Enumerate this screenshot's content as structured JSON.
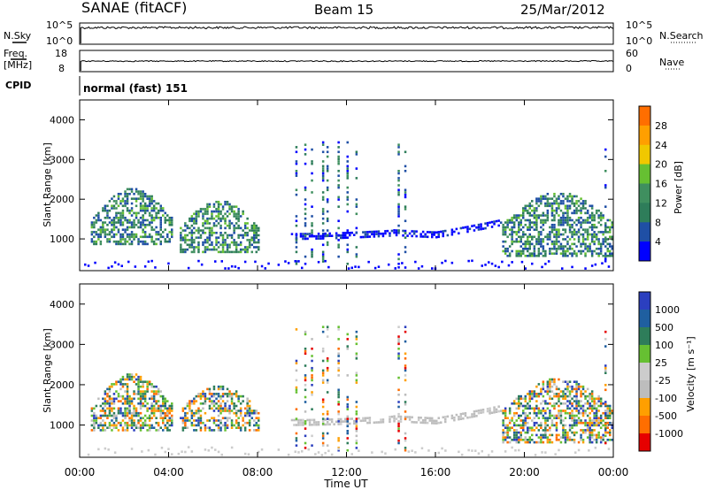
{
  "header": {
    "station": "SANAE (fitACF)",
    "beam": "Beam 15",
    "date": "25/Mar/2012"
  },
  "noise_panel": {
    "left_label": "N.Sky",
    "right_label": "N.Search",
    "left_ticks": [
      "10^5",
      "10^0"
    ],
    "right_ticks": [
      "10^5",
      "10^0"
    ]
  },
  "freq_panel": {
    "left_label": "Freq.",
    "left_unit": "[MHz]",
    "right_label": "Nave",
    "left_ticks": [
      "18",
      "8"
    ],
    "right_ticks": [
      "60",
      "0"
    ]
  },
  "cpid": {
    "label": "CPID",
    "text": "normal (fast) 151"
  },
  "colors": {
    "power": [
      "#0000ff",
      "#1f4fa5",
      "#2e7d5a",
      "#3f8f5f",
      "#66c032",
      "#f0c800",
      "#ff9f00",
      "#ff6e00",
      "#e60000"
    ],
    "velocity": [
      "#2b3fbf",
      "#1f5fa0",
      "#2e7d5a",
      "#66c032",
      "#cccccc",
      "#bdbdbd",
      "#ff9f00",
      "#ff6e00",
      "#e60000"
    ]
  },
  "chart_data": [
    {
      "type": "heatmap",
      "title": "Power",
      "ylabel": "Slant Range [km]",
      "xlabel": "",
      "xlim": [
        0,
        24
      ],
      "ylim": [
        200,
        4500
      ],
      "yticks": [
        "1000",
        "2000",
        "3000",
        "4000"
      ],
      "colorbar": {
        "label": "Power [dB]",
        "tick_labels": [
          "28",
          "24",
          "20",
          "16",
          "12",
          "8",
          "4"
        ]
      },
      "echo_regions": [
        {
          "t_start": 0.5,
          "t_end": 4.2,
          "range_start_km": 700,
          "range_end_km": 2300,
          "level": "mid"
        },
        {
          "t_start": 4.5,
          "t_end": 8.0,
          "range_start_km": 700,
          "range_end_km": 2000,
          "level": "mid"
        },
        {
          "t_start": 9.5,
          "t_end": 19.0,
          "range_start_km": 1000,
          "range_end_km": 1700,
          "level": "low"
        },
        {
          "t_start": 19.0,
          "t_end": 24.0,
          "range_start_km": 600,
          "range_end_km": 2200,
          "level": "mid"
        }
      ]
    },
    {
      "type": "heatmap",
      "title": "Velocity",
      "ylabel": "Slant Range [km]",
      "xlabel": "Time UT",
      "xlim": [
        0,
        24
      ],
      "ylim": [
        200,
        4500
      ],
      "xticks": [
        "00:00",
        "04:00",
        "08:00",
        "12:00",
        "16:00",
        "20:00",
        "00:00"
      ],
      "yticks": [
        "1000",
        "2000",
        "3000",
        "4000"
      ],
      "colorbar": {
        "label": "Velocity [m s⁻¹]",
        "tick_labels": [
          "1000",
          "500",
          "100",
          "25",
          "-25",
          "-100",
          "-500",
          "-1000"
        ]
      },
      "echo_regions": [
        {
          "t_start": 0.5,
          "t_end": 4.2,
          "range_start_km": 700,
          "range_end_km": 2300,
          "level": "mixed"
        },
        {
          "t_start": 4.5,
          "t_end": 8.0,
          "range_start_km": 900,
          "range_end_km": 2000,
          "level": "mixed"
        },
        {
          "t_start": 9.5,
          "t_end": 19.0,
          "range_start_km": 1000,
          "range_end_km": 1700,
          "level": "ground"
        },
        {
          "t_start": 19.0,
          "t_end": 24.0,
          "range_start_km": 600,
          "range_end_km": 2200,
          "level": "mixed"
        }
      ]
    }
  ]
}
